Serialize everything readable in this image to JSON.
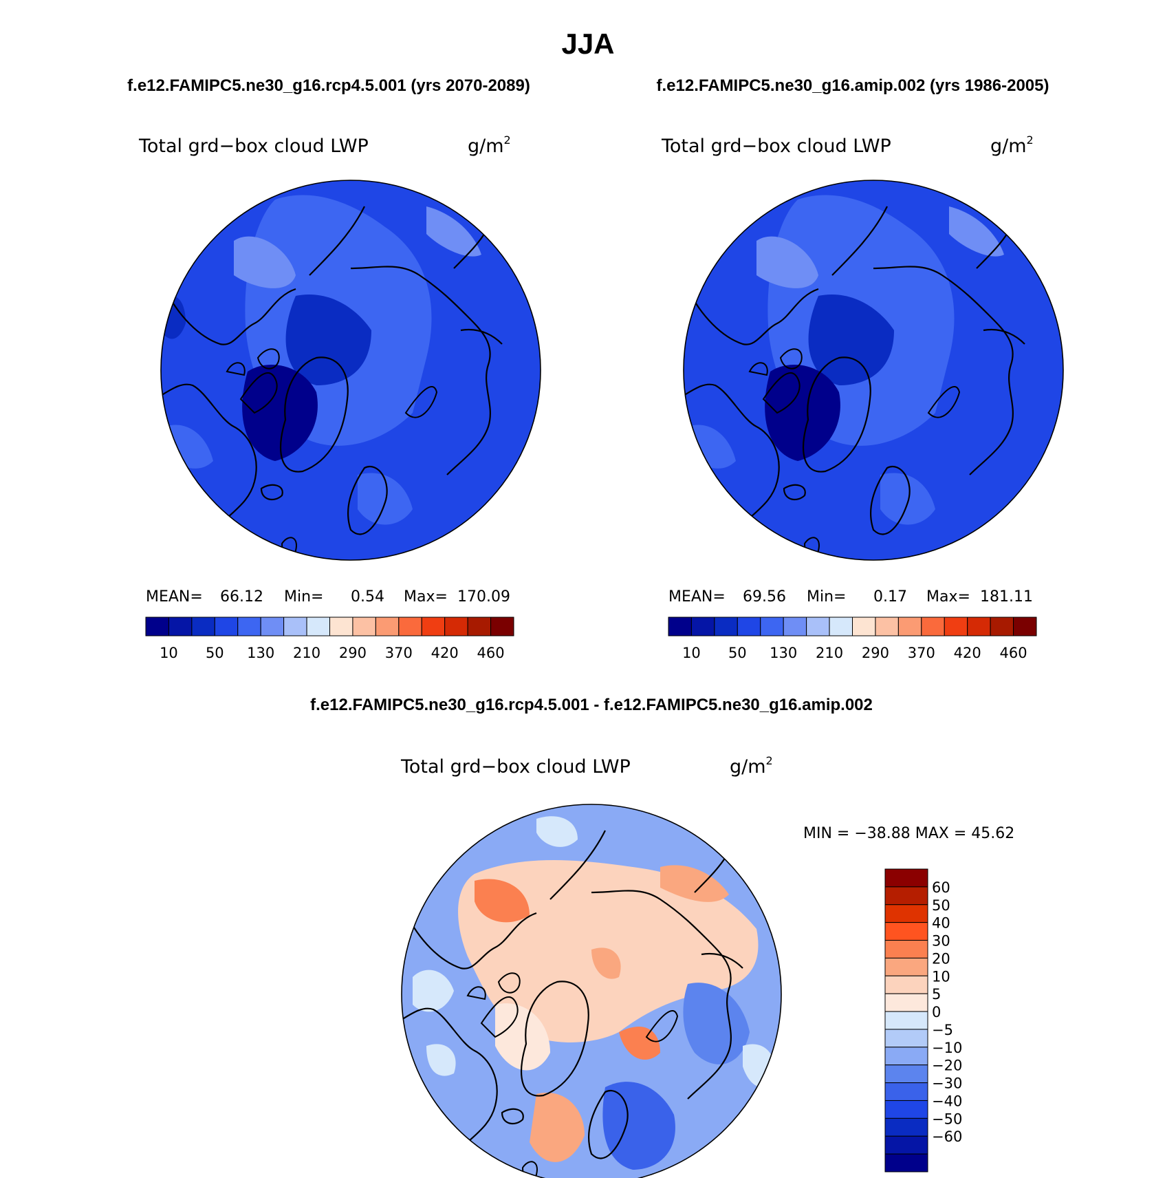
{
  "main_title": "JJA",
  "case_titles": {
    "left": "f.e12.FAMIPC5.ne30_g16.rcp4.5.001 (yrs 2070-2089)",
    "right": "f.e12.FAMIPC5.ne30_g16.amip.002 (yrs 1986-2005)"
  },
  "diff_title": "f.e12.FAMIPC5.ne30_g16.rcp4.5.001 - f.e12.FAMIPC5.ne30_g16.amip.002",
  "variable": "Total grd−box cloud LWP",
  "units_base": "g/m",
  "units_exp": "2",
  "panels": [
    {
      "mean_label": "MEAN=",
      "mean": "66.12",
      "min_label": "Min=",
      "min": "0.54",
      "max_label": "Max=",
      "max": "170.09"
    },
    {
      "mean_label": "MEAN=",
      "mean": "69.56",
      "min_label": "Min=",
      "min": "0.17",
      "max_label": "Max=",
      "max": "181.11"
    }
  ],
  "abs_colorbar": {
    "colors": [
      "#00008b",
      "#0515a6",
      "#0a2cc2",
      "#1f46e6",
      "#3d66f2",
      "#6f8ef5",
      "#a9c0f9",
      "#d6e8fb",
      "#fde4d2",
      "#fcc1a4",
      "#fb9b73",
      "#fa6a3c",
      "#f03e12",
      "#d52a05",
      "#a71a00",
      "#7a0000"
    ],
    "labels": [
      "10",
      "50",
      "130",
      "210",
      "290",
      "370",
      "420",
      "460"
    ]
  },
  "diff_stats": {
    "text": "MIN = −38.88 MAX =  45.62"
  },
  "diff_colorbar": {
    "colors": [
      "#8b0000",
      "#b51e00",
      "#df3300",
      "#ff5420",
      "#fb8050",
      "#faa77f",
      "#fcd3bd",
      "#fde8dc",
      "#d6e8fb",
      "#b2cbf8",
      "#8aaaf5",
      "#5c84ee",
      "#3a62ea",
      "#1f46e6",
      "#0a2cc2",
      "#0515a6",
      "#00008b"
    ],
    "labels": [
      "60",
      "50",
      "40",
      "30",
      "20",
      "10",
      "5",
      "0",
      "−5",
      "−10",
      "−20",
      "−30",
      "−40",
      "−50",
      "−60"
    ]
  },
  "map_palette": {
    "abs_background": "#1f46e6",
    "abs_dark": "#0a2cc2",
    "abs_darker": "#0515a6",
    "abs_darkest": "#00008b",
    "abs_light": "#3d66f2",
    "abs_lighter": "#6f8ef5",
    "diff_background": "#8aaaf5",
    "diff_warm": "#fcd3bd",
    "diff_warmer": "#faa77f",
    "diff_hot": "#fb8050",
    "diff_cool": "#5c84ee",
    "diff_cooler": "#3a62ea",
    "diff_neutral": "#d6e8fb",
    "coastline": "#000000"
  }
}
